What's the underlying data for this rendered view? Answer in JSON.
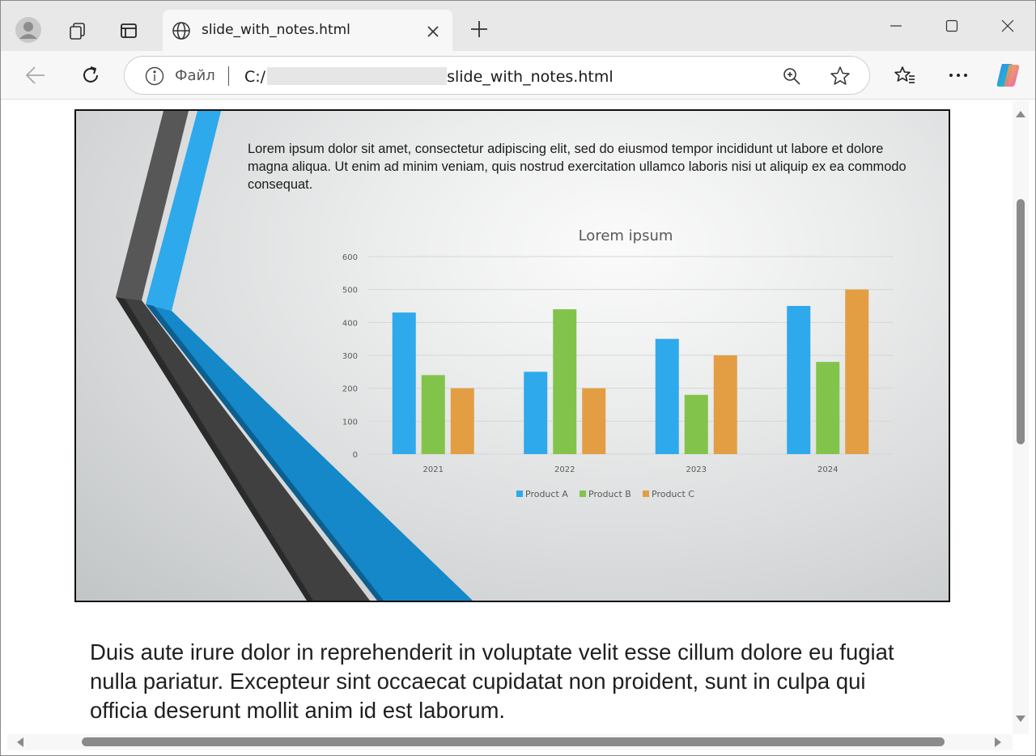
{
  "browser": {
    "tab_title": "slide_with_notes.html",
    "scheme_label": "Файл",
    "url_prefix": "C:/",
    "url_suffix": "slide_with_notes.html"
  },
  "slide": {
    "body_text": "Lorem ipsum dolor sit amet, consectetur adipiscing elit, sed do eiusmod tempor incididunt ut labore et dolore magna aliqua. Ut enim ad minim veniam, quis nostrud exercitation ullamco laboris nisi ut aliquip ex ea commodo consequat.",
    "accent_colors": {
      "dark": "#454545",
      "blue": "#1488c8",
      "light_blue": "#2ea9ec"
    }
  },
  "chart_data": {
    "type": "bar",
    "title": "Lorem ipsum",
    "categories": [
      "2021",
      "2022",
      "2023",
      "2024"
    ],
    "series": [
      {
        "name": "Product A",
        "color": "#2ea9ec",
        "values": [
          430,
          250,
          350,
          450
        ]
      },
      {
        "name": "Product B",
        "color": "#82c34c",
        "values": [
          240,
          440,
          180,
          280
        ]
      },
      {
        "name": "Product C",
        "color": "#e39e43",
        "values": [
          200,
          200,
          300,
          500
        ]
      }
    ],
    "yticks": [
      "0",
      "100",
      "200",
      "300",
      "400",
      "500",
      "600"
    ],
    "ylim": [
      0,
      600
    ],
    "grid": true,
    "legend": "bottom"
  },
  "notes": {
    "text": "Duis aute irure dolor in reprehenderit in voluptate velit esse cillum dolore eu fugiat nulla pariatur. Excepteur sint occaecat cupidatat non proident, sunt in culpa qui officia deserunt mollit anim id est laborum."
  }
}
